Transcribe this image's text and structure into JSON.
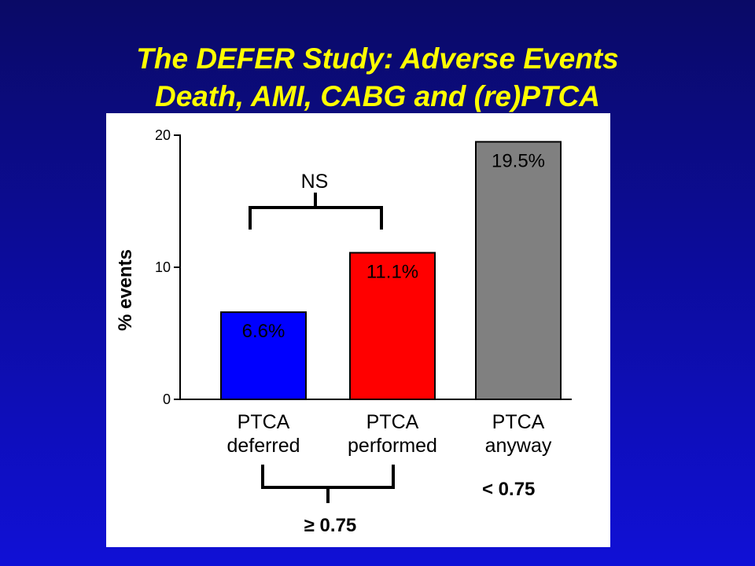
{
  "slide": {
    "title_line1": "The DEFER Study: Adverse Events",
    "title_line2": "Death, AMI, CABG and (re)PTCA",
    "title_color": "#ffff00"
  },
  "chart_data": {
    "type": "bar",
    "categories": [
      [
        "PTCA",
        "deferred"
      ],
      [
        "PTCA",
        "performed"
      ],
      [
        "PTCA",
        "anyway"
      ]
    ],
    "values": [
      6.6,
      11.1,
      19.5
    ],
    "data_labels": [
      "6.6%",
      "11.1%",
      "19.5%"
    ],
    "colors": [
      "#0000ff",
      "#ff0000",
      "#808080"
    ],
    "ylabel": "% events",
    "ylim": [
      0,
      20
    ],
    "yticks": [
      0,
      10,
      20
    ],
    "grid": false,
    "annotations": {
      "ns_label": "NS",
      "group_label": "≥ 0.75",
      "single_label": "< 0.75"
    }
  }
}
